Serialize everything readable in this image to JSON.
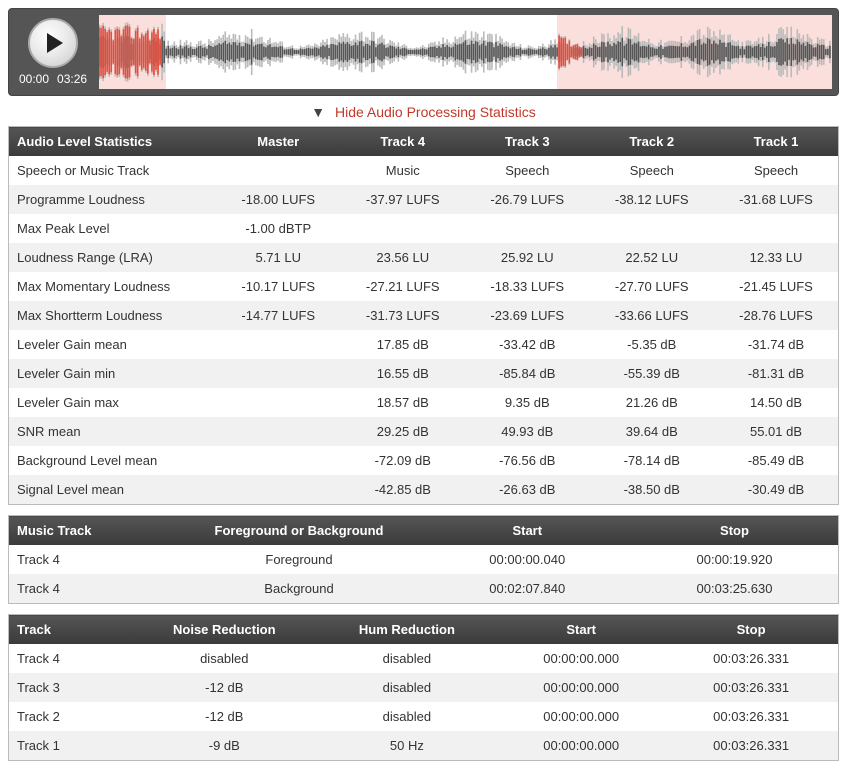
{
  "player": {
    "current_time": "00:00",
    "total_time": "03:26",
    "waveform": {
      "highlights": [
        {
          "left_pct": 0,
          "width_pct": 9.2
        },
        {
          "left_pct": 62.5,
          "width_pct": 37.5
        }
      ],
      "colors": {
        "background": "#ffffff",
        "highlight": "rgba(231,76,60,0.18)",
        "wave_dark": "#555555",
        "wave_light": "#bbbbbb",
        "wave_accent": "#e74c3c"
      }
    }
  },
  "toggle": {
    "caret": "▼",
    "label": "Hide Audio Processing Statistics",
    "link_color": "#c0392b"
  },
  "stats_table": {
    "headers": [
      "Audio Level Statistics",
      "Master",
      "Track 4",
      "Track 3",
      "Track 2",
      "Track 1"
    ],
    "rows": [
      [
        "Speech or Music Track",
        "",
        "Music",
        "Speech",
        "Speech",
        "Speech"
      ],
      [
        "Programme Loudness",
        "-18.00 LUFS",
        "-37.97 LUFS",
        "-26.79 LUFS",
        "-38.12 LUFS",
        "-31.68 LUFS"
      ],
      [
        "Max Peak Level",
        "-1.00 dBTP",
        "",
        "",
        "",
        ""
      ],
      [
        "Loudness Range (LRA)",
        "5.71 LU",
        "23.56 LU",
        "25.92 LU",
        "22.52 LU",
        "12.33 LU"
      ],
      [
        "Max Momentary Loudness",
        "-10.17 LUFS",
        "-27.21 LUFS",
        "-18.33 LUFS",
        "-27.70 LUFS",
        "-21.45 LUFS"
      ],
      [
        "Max Shortterm Loudness",
        "-14.77 LUFS",
        "-31.73 LUFS",
        "-23.69 LUFS",
        "-33.66 LUFS",
        "-28.76 LUFS"
      ],
      [
        "Leveler Gain mean",
        "",
        "17.85 dB",
        "-33.42 dB",
        "-5.35 dB",
        "-31.74 dB"
      ],
      [
        "Leveler Gain min",
        "",
        "16.55 dB",
        "-85.84 dB",
        "-55.39 dB",
        "-81.31 dB"
      ],
      [
        "Leveler Gain max",
        "",
        "18.57 dB",
        "9.35 dB",
        "21.26 dB",
        "14.50 dB"
      ],
      [
        "SNR mean",
        "",
        "29.25 dB",
        "49.93 dB",
        "39.64 dB",
        "55.01 dB"
      ],
      [
        "Background Level mean",
        "",
        "-72.09 dB",
        "-76.56 dB",
        "-78.14 dB",
        "-85.49 dB"
      ],
      [
        "Signal Level mean",
        "",
        "-42.85 dB",
        "-26.63 dB",
        "-38.50 dB",
        "-30.49 dB"
      ]
    ]
  },
  "music_table": {
    "headers": [
      "Music Track",
      "Foreground or Background",
      "Start",
      "Stop"
    ],
    "rows": [
      [
        "Track 4",
        "Foreground",
        "00:00:00.040",
        "00:00:19.920"
      ],
      [
        "Track 4",
        "Background",
        "00:02:07.840",
        "00:03:25.630"
      ]
    ]
  },
  "noise_table": {
    "headers": [
      "Track",
      "Noise Reduction",
      "Hum Reduction",
      "Start",
      "Stop"
    ],
    "rows": [
      [
        "Track 4",
        "disabled",
        "disabled",
        "00:00:00.000",
        "00:03:26.331"
      ],
      [
        "Track 3",
        "-12 dB",
        "disabled",
        "00:00:00.000",
        "00:03:26.331"
      ],
      [
        "Track 2",
        "-12 dB",
        "disabled",
        "00:00:00.000",
        "00:03:26.331"
      ],
      [
        "Track 1",
        "-9 dB",
        "50 Hz",
        "00:00:00.000",
        "00:03:26.331"
      ]
    ]
  }
}
